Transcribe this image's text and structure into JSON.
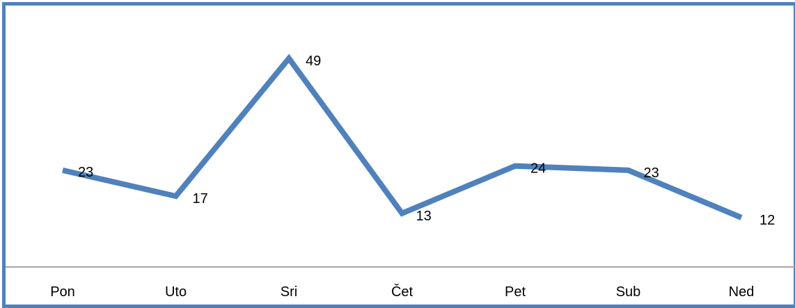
{
  "chart_data": {
    "type": "line",
    "categories": [
      "Pon",
      "Uto",
      "Sri",
      "Čet",
      "Pet",
      "Sub",
      "Ned"
    ],
    "series": [
      {
        "values": [
          23,
          17,
          49,
          13,
          24,
          23,
          12
        ]
      }
    ],
    "data_labels": [
      "23",
      "17",
      "49",
      "13",
      "24",
      "23",
      "12"
    ],
    "line_color": "#4f81bd",
    "border_color": "#4f81bd",
    "axis_color": "#a6a6a6",
    "grid": false,
    "legend": false
  }
}
